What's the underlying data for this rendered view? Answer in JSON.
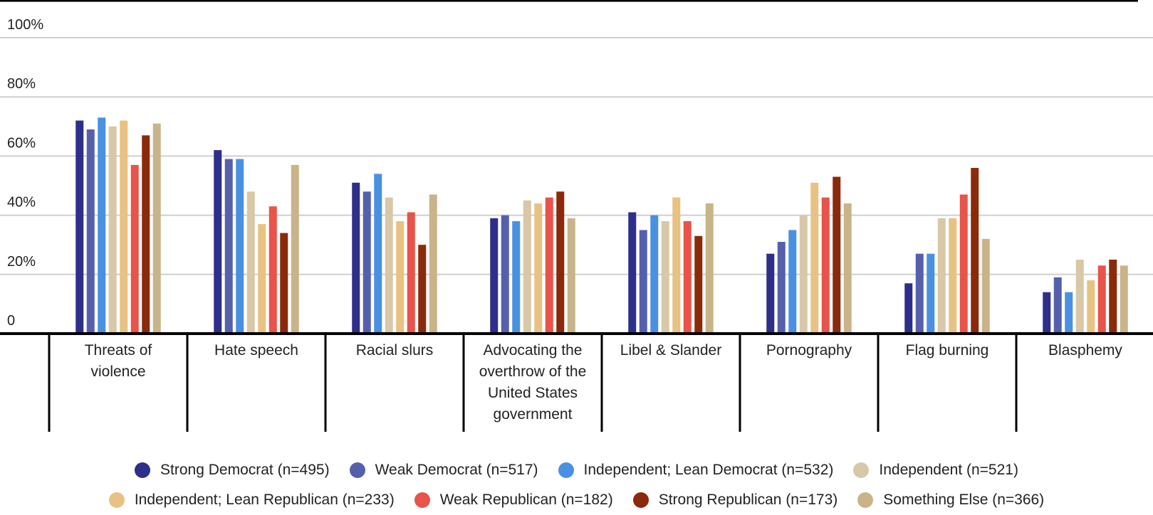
{
  "chart_data": {
    "type": "bar",
    "ylim": [
      0,
      100
    ],
    "yticks": [
      {
        "value": 0,
        "label": "0"
      },
      {
        "value": 20,
        "label": "20%"
      },
      {
        "value": 40,
        "label": "40%"
      },
      {
        "value": 60,
        "label": "60%"
      },
      {
        "value": 80,
        "label": "80%"
      },
      {
        "value": 100,
        "label": "100%"
      }
    ],
    "grid": true,
    "legend_position": "bottom",
    "categories": [
      [
        "Threats of",
        "violence"
      ],
      [
        "Hate speech"
      ],
      [
        "Racial slurs"
      ],
      [
        "Advocating the",
        "overthrow of the",
        "United States",
        "government"
      ],
      [
        "Libel & Slander"
      ],
      [
        "Pornography"
      ],
      [
        "Flag burning"
      ],
      [
        "Blasphemy"
      ]
    ],
    "series": [
      {
        "name": "Strong Democrat (n=495)",
        "color": "#2e2f8a",
        "values": [
          72,
          62,
          51,
          39,
          41,
          27,
          17,
          14
        ]
      },
      {
        "name": "Weak Democrat (n=517)",
        "color": "#5560ad",
        "values": [
          69,
          59,
          48,
          40,
          35,
          31,
          27,
          19
        ]
      },
      {
        "name": "Independent; Lean Democrat (n=532)",
        "color": "#4a90e2",
        "values": [
          73,
          59,
          54,
          38,
          40,
          35,
          27,
          14
        ]
      },
      {
        "name": "Independent (n=521)",
        "color": "#d8c8a8",
        "values": [
          70,
          48,
          46,
          45,
          38,
          40,
          39,
          25
        ]
      },
      {
        "name": "Independent; Lean Republican (n=233)",
        "color": "#e8c283",
        "values": [
          72,
          37,
          38,
          44,
          46,
          51,
          39,
          18
        ]
      },
      {
        "name": "Weak Republican (n=182)",
        "color": "#e8534a",
        "values": [
          57,
          43,
          41,
          46,
          38,
          46,
          47,
          23
        ]
      },
      {
        "name": "Strong Republican (n=173)",
        "color": "#8b2a0a",
        "values": [
          67,
          34,
          30,
          48,
          33,
          53,
          56,
          25
        ]
      },
      {
        "name": "Something Else (n=366)",
        "color": "#c9b48a",
        "values": [
          71,
          57,
          47,
          39,
          44,
          44,
          32,
          23
        ]
      }
    ]
  }
}
